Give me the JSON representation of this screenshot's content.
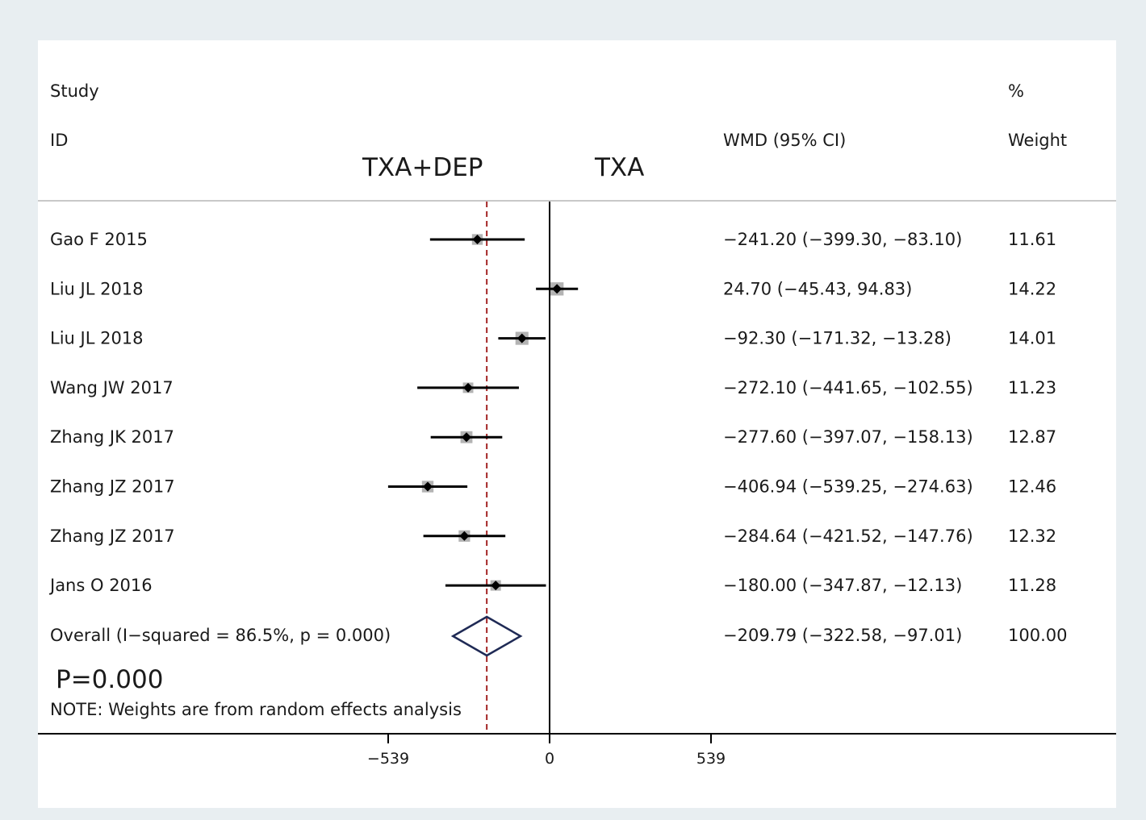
{
  "chart_data": {
    "type": "forest",
    "headers": {
      "study_line1": "Study",
      "study_line2": "ID",
      "effect": "WMD (95% CI)",
      "weight_line1": "%",
      "weight_line2": "Weight"
    },
    "side_labels": {
      "left": "TXA+DEP",
      "right": "TXA"
    },
    "studies": [
      {
        "id": "Gao F 2015",
        "wmd": -241.2,
        "lo": -399.3,
        "hi": -83.1,
        "text": "−241.20 (−399.30, −83.10)",
        "weight": 11.61,
        "weight_text": "11.61"
      },
      {
        "id": "Liu JL 2018",
        "wmd": 24.7,
        "lo": -45.43,
        "hi": 94.83,
        "text": "24.70 (−45.43, 94.83)",
        "weight": 14.22,
        "weight_text": "14.22"
      },
      {
        "id": "Liu JL 2018",
        "wmd": -92.3,
        "lo": -171.32,
        "hi": -13.28,
        "text": "−92.30 (−171.32, −13.28)",
        "weight": 14.01,
        "weight_text": "14.01"
      },
      {
        "id": "Wang JW 2017",
        "wmd": -272.1,
        "lo": -441.65,
        "hi": -102.55,
        "text": "−272.10 (−441.65, −102.55)",
        "weight": 11.23,
        "weight_text": "11.23"
      },
      {
        "id": "Zhang JK 2017",
        "wmd": -277.6,
        "lo": -397.07,
        "hi": -158.13,
        "text": "−277.60 (−397.07, −158.13)",
        "weight": 12.87,
        "weight_text": "12.87"
      },
      {
        "id": "Zhang JZ 2017",
        "wmd": -406.94,
        "lo": -539.25,
        "hi": -274.63,
        "text": "−406.94 (−539.25, −274.63)",
        "weight": 12.46,
        "weight_text": "12.46"
      },
      {
        "id": "Zhang JZ 2017",
        "wmd": -284.64,
        "lo": -421.52,
        "hi": -147.76,
        "text": "−284.64 (−421.52, −147.76)",
        "weight": 12.32,
        "weight_text": "12.32"
      },
      {
        "id": "Jans O 2016",
        "wmd": -180.0,
        "lo": -347.87,
        "hi": -12.13,
        "text": "−180.00 (−347.87, −12.13)",
        "weight": 11.28,
        "weight_text": "11.28"
      }
    ],
    "overall": {
      "label": "Overall  (I−squared = 86.5%, p = 0.000)",
      "wmd": -209.79,
      "lo": -322.58,
      "hi": -97.01,
      "text": "−209.79 (−322.58, −97.01)",
      "weight_text": "100.00"
    },
    "p_value_text": "P=0.000",
    "note": "NOTE: Weights are from random effects analysis",
    "x_ticks": [
      {
        "value": -539,
        "label": "−539"
      },
      {
        "value": 0,
        "label": "0"
      },
      {
        "value": 539,
        "label": "539"
      }
    ],
    "xlim": [
      -539,
      539
    ],
    "null_line": 0,
    "colors": {
      "background": "#e8eef1",
      "panel": "#ffffff",
      "ci_line": "#000000",
      "weight_box": "#b3b3b3",
      "overall_diamond": "#1f2a55",
      "overall_dashed_line": "#a32424",
      "divider": "#c8c8c8"
    }
  }
}
